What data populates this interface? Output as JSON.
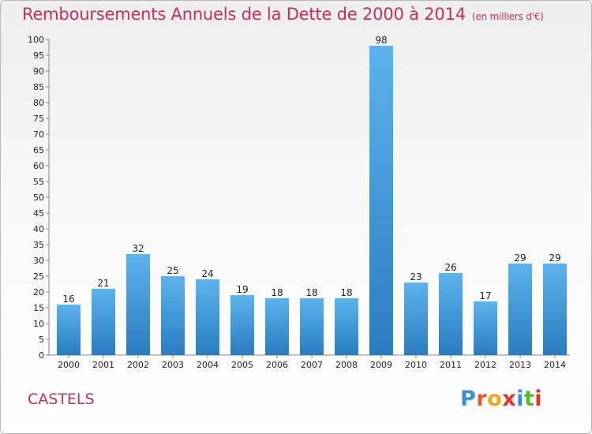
{
  "header": {
    "title": "Remboursements Annuels de la Dette de 2000 à 2014",
    "unit": "(en milliers d'€)"
  },
  "footer": {
    "commune": "CASTELS",
    "brand": "Proxiti"
  },
  "colors": {
    "title": "#c0325d",
    "bar_light": "#5db3ec",
    "bar_dark": "#2a7cc0",
    "brand_letters": [
      "#3a8fd6",
      "#e8572a",
      "#f2a516",
      "#e8302a",
      "#3a8fd6",
      "#5cb82e",
      "#e8302a"
    ]
  },
  "chart_data": {
    "type": "bar",
    "title": "Remboursements Annuels de la Dette de 2000 à 2014",
    "subtitle": "(en milliers d'€)",
    "categories": [
      "2000",
      "2001",
      "2002",
      "2003",
      "2004",
      "2005",
      "2006",
      "2007",
      "2008",
      "2009",
      "2010",
      "2011",
      "2012",
      "2013",
      "2014"
    ],
    "values": [
      16,
      21,
      32,
      25,
      24,
      19,
      18,
      18,
      18,
      98,
      23,
      26,
      17,
      29,
      29
    ],
    "ylim": [
      0,
      100
    ],
    "yticks": [
      0,
      5,
      10,
      15,
      20,
      25,
      30,
      35,
      40,
      45,
      50,
      55,
      60,
      65,
      70,
      75,
      80,
      85,
      90,
      95,
      100
    ],
    "grid": false,
    "legend": "none"
  }
}
